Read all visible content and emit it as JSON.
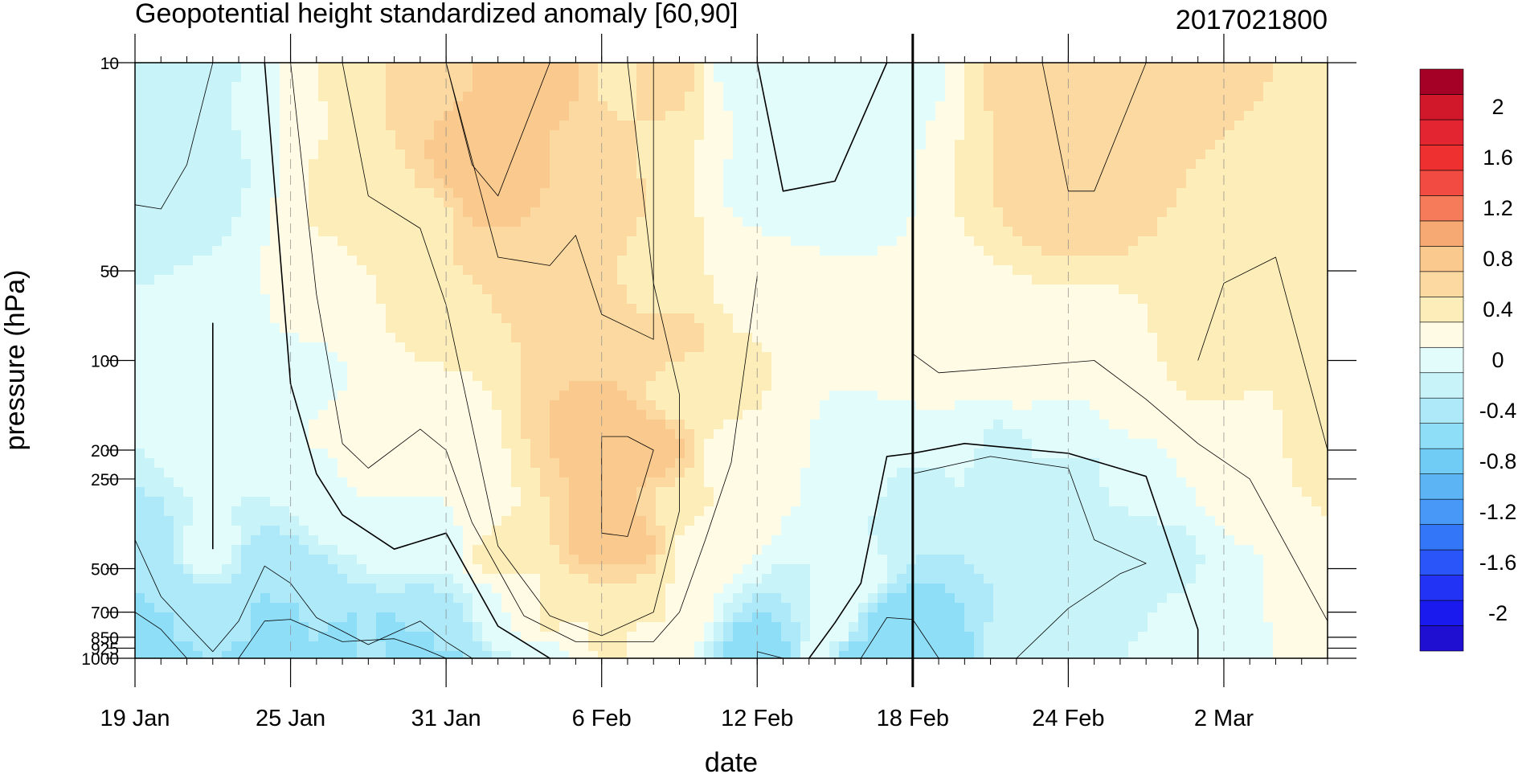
{
  "chart_data": {
    "type": "heatmap",
    "title": "Geopotential height standardized anomaly [60,90]",
    "run_label": "2017021800",
    "xlabel": "date",
    "ylabel": "pressure (hPa)",
    "x_start": "2017-01-19",
    "x_end": "2017-03-06",
    "x_ticks": [
      {
        "date": "2017-01-19",
        "label": "19 Jan"
      },
      {
        "date": "2017-01-25",
        "label": "25 Jan"
      },
      {
        "date": "2017-01-31",
        "label": "31 Jan"
      },
      {
        "date": "2017-02-06",
        "label": "6 Feb"
      },
      {
        "date": "2017-02-12",
        "label": "12 Feb"
      },
      {
        "date": "2017-02-18",
        "label": "18 Feb"
      },
      {
        "date": "2017-02-24",
        "label": "24 Feb"
      },
      {
        "date": "2017-03-02",
        "label": "2 Mar"
      }
    ],
    "y_scale": "log",
    "y_range_hPa": [
      1000,
      10
    ],
    "y_ticks": [
      {
        "value": 10,
        "label": "10"
      },
      {
        "value": 50,
        "label": "50"
      },
      {
        "value": 100,
        "label": "100"
      },
      {
        "value": 200,
        "label": "200"
      },
      {
        "value": 250,
        "label": "250"
      },
      {
        "value": 500,
        "label": "500"
      },
      {
        "value": 700,
        "label": "700"
      },
      {
        "value": 850,
        "label": "850"
      },
      {
        "value": 925,
        "label": "925"
      },
      {
        "value": 1000,
        "label": "1000"
      }
    ],
    "current_date_marker": "2017-02-18",
    "colorbar": {
      "levels": [
        -2.2,
        -2,
        -1.8,
        -1.6,
        -1.4,
        -1.2,
        -1,
        -0.8,
        -0.6,
        -0.4,
        -0.2,
        0,
        0.2,
        0.4,
        0.6,
        0.8,
        1,
        1.2,
        1.4,
        1.6,
        1.8,
        2,
        2.2
      ],
      "colors": [
        "#1f0fd0",
        "#1a1aee",
        "#2233f5",
        "#2a55f8",
        "#3377f8",
        "#4898f7",
        "#5cb4f5",
        "#70cbf5",
        "#8fdef7",
        "#ade9f8",
        "#c8f3f8",
        "#e2fbfb",
        "#fffbe5",
        "#fdedb9",
        "#fbd9a0",
        "#f9c98e",
        "#f7a974",
        "#f57b5a",
        "#f24b42",
        "#ee3030",
        "#e32531",
        "#d0182a",
        "#a50026"
      ],
      "tick_labels": [
        {
          "value": -2,
          "label": "-2"
        },
        {
          "value": -1.6,
          "label": "-1.6"
        },
        {
          "value": -1.2,
          "label": "-1.2"
        },
        {
          "value": -0.8,
          "label": "-0.8"
        },
        {
          "value": -0.4,
          "label": "-0.4"
        },
        {
          "value": 0,
          "label": "0"
        },
        {
          "value": 0.4,
          "label": "0.4"
        },
        {
          "value": 0.8,
          "label": "0.8"
        },
        {
          "value": 1.2,
          "label": "1.2"
        },
        {
          "value": 1.6,
          "label": "1.6"
        },
        {
          "value": 2,
          "label": "2"
        }
      ]
    },
    "contours": [
      {
        "level": 0.0,
        "points": [
          [
            "2017-01-24",
            10
          ],
          [
            "2017-01-25",
            120
          ],
          [
            "2017-01-26",
            240
          ],
          [
            "2017-01-27",
            330
          ],
          [
            "2017-01-29",
            430
          ],
          [
            "2017-01-31",
            380
          ],
          [
            "2017-02-02",
            780
          ],
          [
            "2017-02-04",
            1000
          ]
        ]
      },
      {
        "level": 0.0,
        "points": [
          [
            "2017-02-14",
            1000
          ],
          [
            "2017-02-15",
            760
          ],
          [
            "2017-02-16",
            560
          ],
          [
            "2017-02-17",
            210
          ],
          [
            "2017-02-18",
            205
          ],
          [
            "2017-02-20",
            190
          ],
          [
            "2017-02-24",
            205
          ],
          [
            "2017-02-27",
            245
          ],
          [
            "2017-03-01",
            800
          ],
          [
            "2017-03-01",
            1000
          ]
        ]
      },
      {
        "level": 0.0,
        "points": [
          [
            "2017-02-12",
            10
          ],
          [
            "2017-02-13",
            27
          ],
          [
            "2017-02-15",
            25
          ],
          [
            "2017-02-17",
            10
          ]
        ]
      },
      {
        "level": 0.0,
        "points": [
          [
            "2017-01-22",
            190
          ],
          [
            "2017-01-22",
            100
          ],
          [
            "2017-01-22",
            75
          ],
          [
            "2017-01-22",
            100
          ],
          [
            "2017-01-22",
            190
          ],
          [
            "2017-01-22",
            430
          ]
        ]
      },
      {
        "level": 0.2,
        "points": [
          [
            "2017-01-25",
            10
          ],
          [
            "2017-01-26",
            60
          ],
          [
            "2017-01-27",
            190
          ],
          [
            "2017-01-28",
            230
          ],
          [
            "2017-01-30",
            170
          ],
          [
            "2017-01-31",
            200
          ],
          [
            "2017-02-01",
            350
          ],
          [
            "2017-02-03",
            720
          ],
          [
            "2017-02-05",
            880
          ],
          [
            "2017-02-08",
            880
          ],
          [
            "2017-02-09",
            700
          ],
          [
            "2017-02-10",
            400
          ],
          [
            "2017-02-11",
            220
          ],
          [
            "2017-02-12",
            52
          ]
        ]
      },
      {
        "level": 0.2,
        "points": [
          [
            "2017-02-18",
            95
          ],
          [
            "2017-02-19",
            110
          ],
          [
            "2017-02-22",
            105
          ],
          [
            "2017-02-25",
            100
          ],
          [
            "2017-02-27",
            135
          ],
          [
            "2017-03-01",
            190
          ],
          [
            "2017-03-03",
            250
          ],
          [
            "2017-03-06",
            750
          ]
        ]
      },
      {
        "level": 0.4,
        "points": [
          [
            "2017-01-27",
            10
          ],
          [
            "2017-01-28",
            28
          ],
          [
            "2017-01-30",
            36
          ],
          [
            "2017-01-31",
            65
          ],
          [
            "2017-02-02",
            420
          ],
          [
            "2017-02-04",
            720
          ],
          [
            "2017-02-06",
            840
          ],
          [
            "2017-02-08",
            700
          ],
          [
            "2017-02-09",
            320
          ],
          [
            "2017-02-09",
            130
          ],
          [
            "2017-02-08",
            55
          ],
          [
            "2017-02-07",
            10
          ]
        ]
      },
      {
        "level": 0.4,
        "points": [
          [
            "2017-03-01",
            100
          ],
          [
            "2017-03-02",
            55
          ],
          [
            "2017-03-04",
            45
          ],
          [
            "2017-03-06",
            200
          ]
        ]
      },
      {
        "level": 0.6,
        "points": [
          [
            "2017-01-31",
            10
          ],
          [
            "2017-02-02",
            45
          ],
          [
            "2017-02-04",
            48
          ],
          [
            "2017-02-05",
            38
          ],
          [
            "2017-02-06",
            70
          ],
          [
            "2017-02-08",
            85
          ],
          [
            "2017-02-08",
            10
          ]
        ]
      },
      {
        "level": 0.6,
        "points": [
          [
            "2017-02-23",
            10
          ],
          [
            "2017-02-24",
            27
          ],
          [
            "2017-02-25",
            27
          ],
          [
            "2017-02-27",
            10
          ]
        ]
      },
      {
        "level": 0.8,
        "points": [
          [
            "2017-01-31",
            10
          ],
          [
            "2017-02-01",
            22
          ],
          [
            "2017-02-02",
            28
          ],
          [
            "2017-02-04",
            10
          ]
        ]
      },
      {
        "level": 0.8,
        "points": [
          [
            "2017-02-06",
            180
          ],
          [
            "2017-02-07",
            180
          ],
          [
            "2017-02-08",
            200
          ],
          [
            "2017-02-07",
            390
          ],
          [
            "2017-02-06",
            380
          ],
          [
            "2017-02-06",
            180
          ]
        ]
      },
      {
        "level": -0.2,
        "points": [
          [
            "2017-01-19",
            10
          ],
          [
            "2017-01-22",
            10
          ],
          [
            "2017-01-21",
            22
          ],
          [
            "2017-01-20",
            31
          ],
          [
            "2017-01-19",
            30
          ]
        ]
      },
      {
        "level": -0.2,
        "points": [
          [
            "2017-02-18",
            240
          ],
          [
            "2017-02-21",
            210
          ],
          [
            "2017-02-24",
            230
          ],
          [
            "2017-02-25",
            400
          ],
          [
            "2017-02-27",
            480
          ],
          [
            "2017-02-26",
            520
          ],
          [
            "2017-02-24",
            680
          ],
          [
            "2017-02-22",
            1000
          ]
        ]
      },
      {
        "level": -0.4,
        "points": [
          [
            "2017-01-19",
            400
          ],
          [
            "2017-01-20",
            620
          ],
          [
            "2017-01-21",
            770
          ],
          [
            "2017-01-22",
            950
          ],
          [
            "2017-01-23",
            750
          ],
          [
            "2017-01-24",
            490
          ],
          [
            "2017-01-25",
            560
          ],
          [
            "2017-01-26",
            730
          ],
          [
            "2017-01-28",
            900
          ],
          [
            "2017-01-30",
            750
          ],
          [
            "2017-01-31",
            880
          ],
          [
            "2017-02-01",
            1000
          ]
        ]
      },
      {
        "level": -0.6,
        "points": [
          [
            "2017-01-19",
            700
          ],
          [
            "2017-01-20",
            800
          ],
          [
            "2017-01-21",
            1000
          ]
        ]
      },
      {
        "level": -0.6,
        "points": [
          [
            "2017-01-23",
            1000
          ],
          [
            "2017-01-24",
            750
          ],
          [
            "2017-01-25",
            740
          ],
          [
            "2017-01-27",
            880
          ],
          [
            "2017-01-29",
            860
          ],
          [
            "2017-01-30",
            920
          ],
          [
            "2017-01-31",
            1000
          ]
        ]
      },
      {
        "level": -0.6,
        "points": [
          [
            "2017-02-16",
            1000
          ],
          [
            "2017-02-17",
            730
          ],
          [
            "2017-02-18",
            740
          ],
          [
            "2017-02-19",
            1000
          ]
        ]
      },
      {
        "level": -0.6,
        "points": [
          [
            "2017-02-12",
            1000
          ],
          [
            "2017-02-12",
            950
          ],
          [
            "2017-02-13",
            1000
          ]
        ]
      }
    ]
  }
}
